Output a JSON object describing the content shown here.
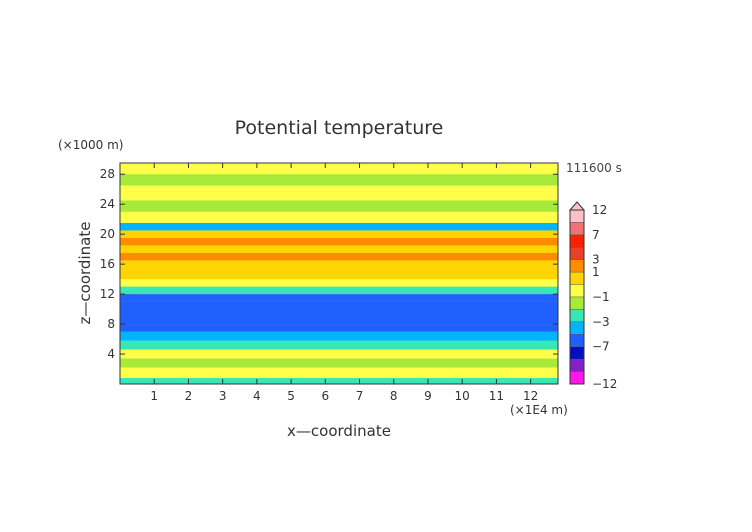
{
  "chart_data": {
    "type": "heatmap",
    "title": "Potential temperature",
    "xlabel": "x—coordinate",
    "ylabel": "z—coordinate",
    "x_unit": "(×1E4 m)",
    "y_unit": "(×1000 m)",
    "time_label": "111600 s",
    "xlim": [
      0,
      12.8
    ],
    "ylim": [
      0,
      29.5
    ],
    "x_ticks": [
      1,
      2,
      3,
      4,
      5,
      6,
      7,
      8,
      9,
      10,
      11,
      12
    ],
    "y_ticks": [
      4,
      8,
      12,
      16,
      20,
      24,
      28
    ],
    "colorbar": {
      "labeled_levels": [
        12,
        7,
        3,
        1,
        -1,
        -3,
        -7,
        -12
      ],
      "bins": [
        {
          "color": "#ffc0c8",
          "level": 12
        },
        {
          "color": "#f2707a",
          "level": 9
        },
        {
          "color": "#ff2000",
          "level": 7
        },
        {
          "color": "#e8402a",
          "level": 5
        },
        {
          "color": "#ff8c00",
          "level": 3
        },
        {
          "color": "#ffd400",
          "level": 1
        },
        {
          "color": "#ffff4a",
          "level": 0
        },
        {
          "color": "#a8ea3c",
          "level": -1
        },
        {
          "color": "#38e8b4",
          "level": -2
        },
        {
          "color": "#00b4ff",
          "level": -3
        },
        {
          "color": "#2060ff",
          "level": -5
        },
        {
          "color": "#0010c0",
          "level": -7
        },
        {
          "color": "#8420c8",
          "level": -9
        },
        {
          "color": "#ff18e8",
          "level": -12
        }
      ]
    },
    "field_bands": [
      {
        "z": [
          0,
          0.8
        ],
        "value": -2
      },
      {
        "z": [
          0.8,
          2.2
        ],
        "value": 0.6
      },
      {
        "z": [
          2.2,
          3.4
        ],
        "value": -1
      },
      {
        "z": [
          3.4,
          4.6
        ],
        "value": 0.4
      },
      {
        "z": [
          4.6,
          5.8
        ],
        "value": -1.4
      },
      {
        "z": [
          5.8,
          7.0
        ],
        "value": -2.2
      },
      {
        "z": [
          7.0,
          8.0
        ],
        "value": -3.5
      },
      {
        "z": [
          8.0,
          11.0
        ],
        "value": -4.5
      },
      {
        "z": [
          11.0,
          12.0
        ],
        "value": -3.5
      },
      {
        "z": [
          12.0,
          13.0
        ],
        "value": -1.2
      },
      {
        "z": [
          13.0,
          14.0
        ],
        "value": 0.2
      },
      {
        "z": [
          14.0,
          15.5
        ],
        "value": 1.2
      },
      {
        "z": [
          15.5,
          16.5
        ],
        "value": 2.2
      },
      {
        "z": [
          16.5,
          17.5
        ],
        "value": 3.5
      },
      {
        "z": [
          17.5,
          18.5
        ],
        "value": 2.2
      },
      {
        "z": [
          18.5,
          19.5
        ],
        "value": 3.5
      },
      {
        "z": [
          19.5,
          20.5
        ],
        "value": 2.2
      },
      {
        "z": [
          20.5,
          21.5
        ],
        "value": -2.5
      },
      {
        "z": [
          21.5,
          23.0
        ],
        "value": 0.4
      },
      {
        "z": [
          23.0,
          24.5
        ],
        "value": -1
      },
      {
        "z": [
          24.5,
          26.5
        ],
        "value": 0.4
      },
      {
        "z": [
          26.5,
          28.0
        ],
        "value": -1
      },
      {
        "z": [
          28.0,
          29.5
        ],
        "value": 0.4
      }
    ]
  }
}
